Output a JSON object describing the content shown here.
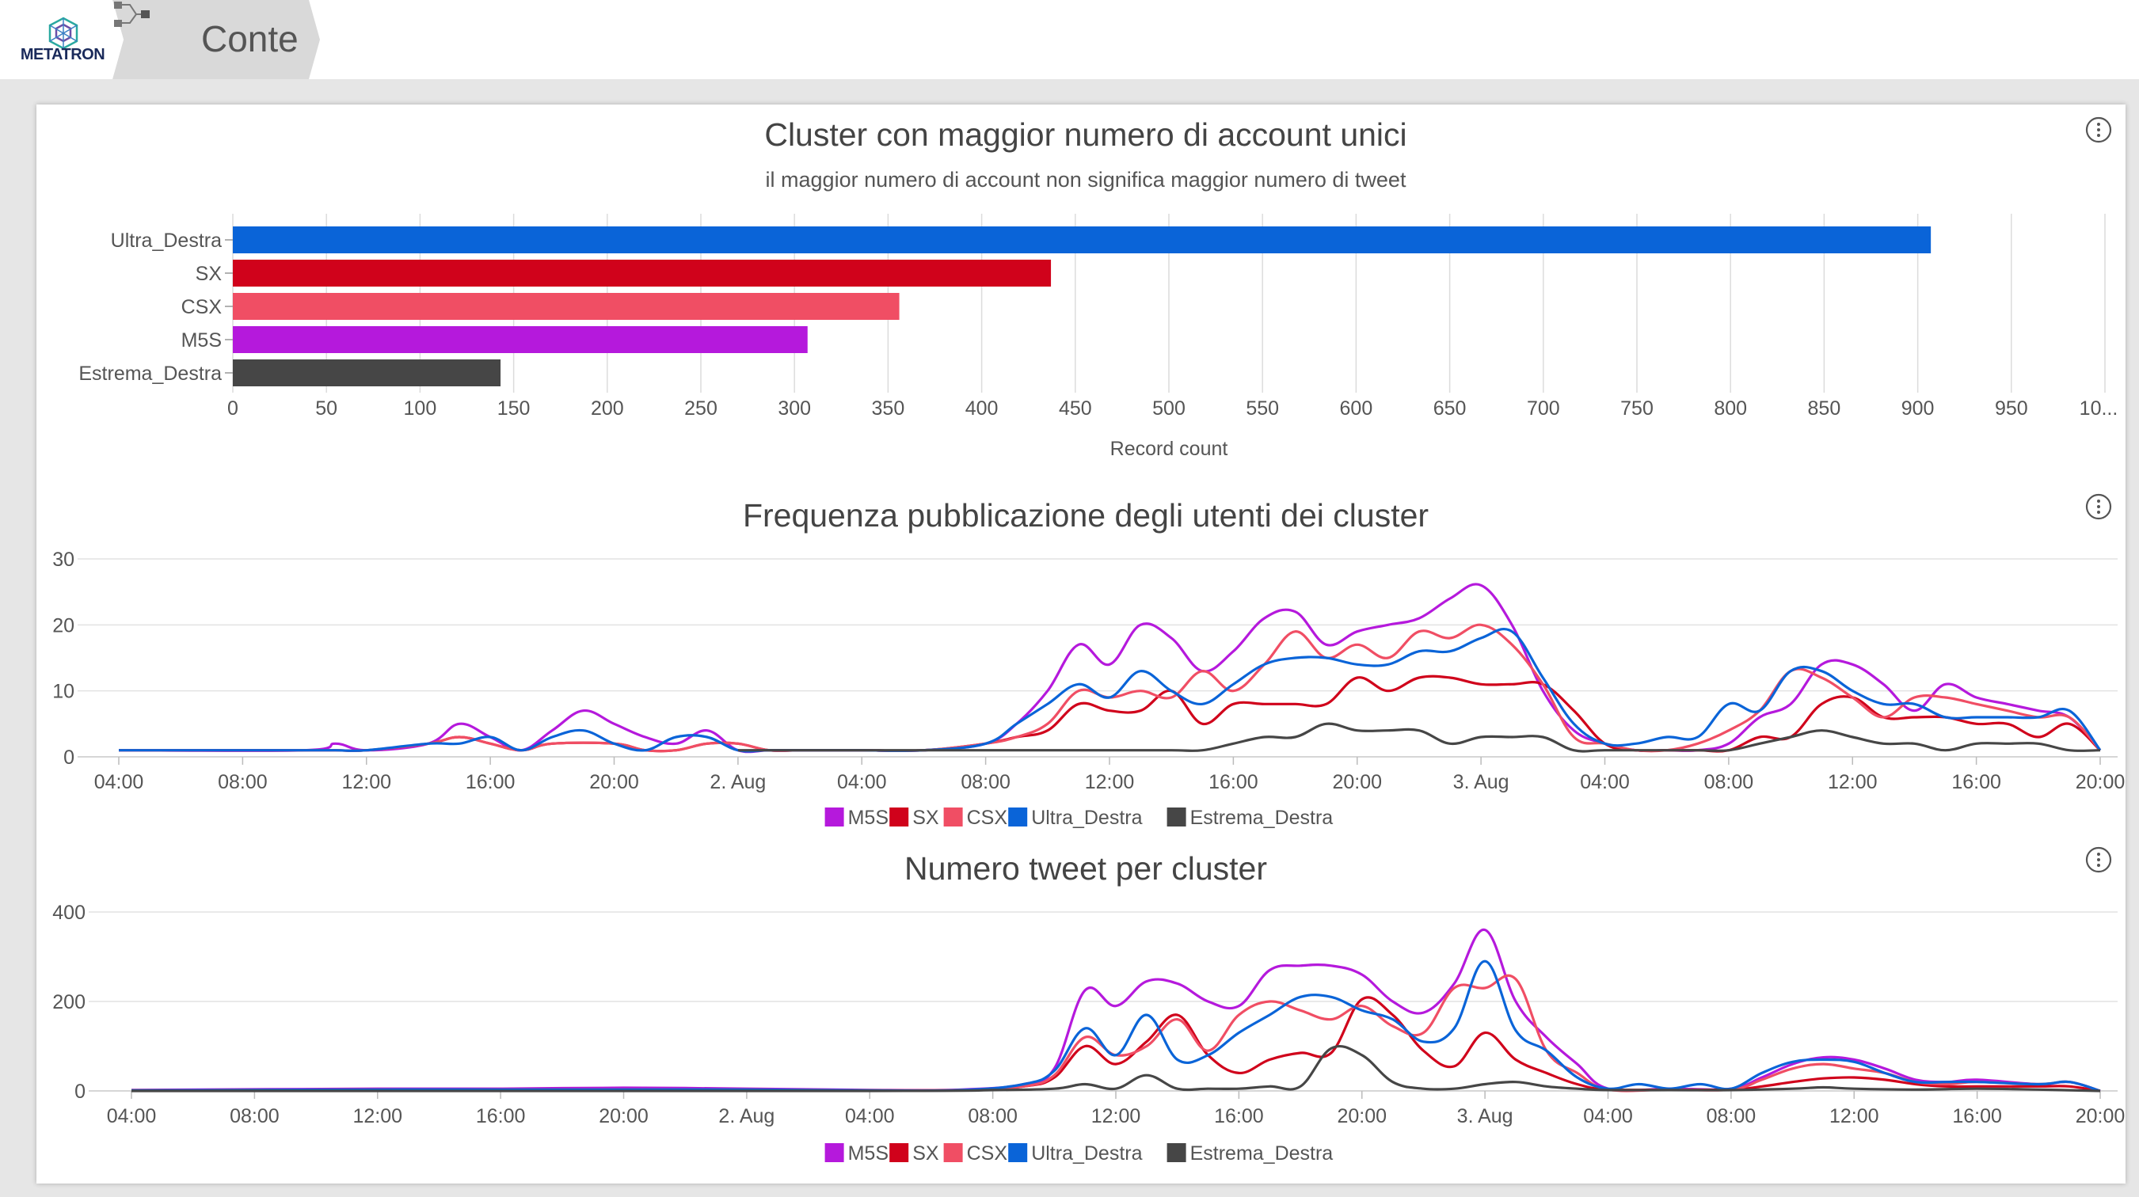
{
  "app": {
    "logo_text": "METATRON",
    "breadcrumb": "Conte"
  },
  "colors": {
    "M5S": "#b519dc",
    "SX": "#d0021b",
    "CSX": "#f04e64",
    "Ultra_Destra": "#0a64d8",
    "Estrema_Destra": "#464646"
  },
  "chart_data": [
    {
      "type": "bar",
      "title": "Cluster con maggior numero di account unici",
      "subtitle": "il maggior numero di account non significa maggior numero di tweet",
      "categories": [
        "Ultra_Destra",
        "SX",
        "CSX",
        "M5S",
        "Estrema_Destra"
      ],
      "values": [
        907,
        437,
        356,
        307,
        143
      ],
      "xlabel": "Record count",
      "ylabel": "",
      "xlim": [
        0,
        1000
      ],
      "ticks": [
        0,
        50,
        100,
        150,
        200,
        250,
        300,
        350,
        400,
        450,
        500,
        550,
        600,
        650,
        700,
        750,
        800,
        850,
        900,
        950
      ],
      "last_tick_label": "10...",
      "grid": true
    },
    {
      "type": "line",
      "title": "Frequenza pubblicazione degli utenti dei cluster",
      "ylim": [
        0,
        30
      ],
      "yticks": [
        0,
        10,
        20,
        30
      ],
      "x_tick_labels": [
        "04:00",
        "08:00",
        "12:00",
        "16:00",
        "20:00",
        "2. Aug",
        "04:00",
        "08:00",
        "12:00",
        "16:00",
        "20:00",
        "3. Aug",
        "04:00",
        "08:00",
        "12:00",
        "16:00",
        "20:00"
      ],
      "x_hours": [
        0,
        4,
        8,
        12,
        16,
        20,
        24,
        28,
        32,
        36,
        40,
        44,
        48,
        52,
        56,
        60,
        64
      ],
      "legend": [
        "M5S",
        "SX",
        "CSX",
        "Ultra_Destra",
        "Estrema_Destra"
      ],
      "legend_position": "bottom-center",
      "grid": true,
      "series": [
        {
          "name": "M5S",
          "x": [
            0,
            6,
            7,
            8,
            10,
            11,
            12,
            13,
            14,
            15,
            16,
            17,
            18,
            19,
            20,
            21,
            22,
            23,
            24,
            26,
            28,
            29,
            30,
            31,
            32,
            33,
            34,
            35,
            36,
            37,
            38,
            39,
            40,
            41,
            42,
            43,
            44,
            45,
            46,
            47,
            48,
            49,
            50,
            51,
            52,
            53,
            54,
            55,
            56,
            57,
            58,
            59,
            60,
            61,
            62,
            63,
            64
          ],
          "y": [
            1,
            1,
            2,
            1,
            2,
            5,
            3,
            1,
            4,
            7,
            5,
            3,
            2,
            4,
            1,
            1,
            1,
            1,
            1,
            1,
            2,
            5,
            10,
            17,
            14,
            20,
            18,
            13,
            16,
            21,
            22,
            17,
            19,
            20,
            21,
            24,
            26,
            20,
            10,
            4,
            2,
            1,
            1,
            1,
            2,
            6,
            8,
            14,
            14,
            11,
            7,
            11,
            9,
            8,
            7,
            6,
            1
          ]
        },
        {
          "name": "SX",
          "x": [
            0,
            6,
            7,
            8,
            10,
            11,
            12,
            13,
            14,
            16,
            17,
            18,
            19,
            20,
            21,
            22,
            23,
            24,
            26,
            28,
            29,
            30,
            31,
            32,
            33,
            34,
            35,
            36,
            37,
            38,
            39,
            40,
            41,
            42,
            43,
            44,
            45,
            46,
            47,
            48,
            49,
            50,
            51,
            52,
            53,
            54,
            55,
            56,
            57,
            58,
            59,
            60,
            61,
            62,
            63,
            64
          ],
          "y": [
            1,
            1,
            1,
            1,
            2,
            3,
            2,
            1,
            2,
            2,
            1,
            1,
            2,
            2,
            1,
            1,
            1,
            1,
            1,
            2,
            3,
            4,
            8,
            7,
            7,
            10,
            5,
            8,
            8,
            8,
            8,
            12,
            10,
            12,
            12,
            11,
            11,
            11,
            7,
            2,
            1,
            1,
            1,
            1,
            3,
            3,
            8,
            9,
            6,
            6,
            6,
            5,
            5,
            3,
            5,
            1
          ]
        },
        {
          "name": "CSX",
          "x": [
            0,
            6,
            7,
            8,
            10,
            11,
            12,
            13,
            14,
            16,
            17,
            18,
            19,
            20,
            21,
            22,
            23,
            24,
            26,
            28,
            29,
            30,
            31,
            32,
            33,
            34,
            35,
            36,
            37,
            38,
            39,
            40,
            41,
            42,
            43,
            44,
            45,
            46,
            47,
            48,
            49,
            50,
            51,
            52,
            53,
            54,
            55,
            56,
            57,
            58,
            59,
            60,
            61,
            62,
            63,
            64
          ],
          "y": [
            1,
            1,
            1,
            1,
            2,
            3,
            2,
            1,
            2,
            2,
            1,
            1,
            2,
            2,
            1,
            1,
            1,
            1,
            1,
            2,
            3,
            5,
            10,
            9,
            10,
            9,
            13,
            10,
            14,
            19,
            15,
            17,
            15,
            19,
            18,
            20,
            17,
            11,
            3,
            2,
            1,
            1,
            2,
            4,
            7,
            13,
            12,
            9,
            6,
            9,
            9,
            8,
            7,
            6,
            6,
            1
          ]
        },
        {
          "name": "Ultra_Destra",
          "x": [
            0,
            6,
            7,
            8,
            10,
            11,
            12,
            13,
            14,
            15,
            16,
            17,
            18,
            19,
            20,
            21,
            22,
            23,
            24,
            26,
            28,
            29,
            30,
            31,
            32,
            33,
            34,
            35,
            36,
            37,
            38,
            39,
            40,
            41,
            42,
            43,
            44,
            45,
            46,
            47,
            48,
            49,
            50,
            51,
            52,
            53,
            54,
            55,
            56,
            57,
            58,
            59,
            60,
            61,
            62,
            63,
            64
          ],
          "y": [
            1,
            1,
            1,
            1,
            2,
            2,
            3,
            1,
            3,
            4,
            2,
            1,
            3,
            3,
            1,
            1,
            1,
            1,
            1,
            1,
            2,
            5,
            8,
            11,
            9,
            13,
            10,
            8,
            11,
            14,
            15,
            15,
            14,
            14,
            16,
            16,
            18,
            19,
            12,
            5,
            2,
            2,
            3,
            3,
            8,
            7,
            13,
            13,
            10,
            8,
            8,
            6,
            6,
            6,
            6,
            7,
            1
          ]
        },
        {
          "name": "Estrema_Destra",
          "x": [
            20,
            24,
            28,
            32,
            34,
            35,
            36,
            37,
            38,
            39,
            40,
            41,
            42,
            43,
            44,
            45,
            46,
            47,
            48,
            50,
            51,
            52,
            53,
            54,
            55,
            56,
            57,
            58,
            59,
            60,
            61,
            62,
            63,
            64
          ],
          "y": [
            1,
            1,
            1,
            1,
            1,
            1,
            2,
            3,
            3,
            5,
            4,
            4,
            4,
            2,
            3,
            3,
            3,
            1,
            1,
            1,
            1,
            1,
            2,
            3,
            4,
            3,
            2,
            2,
            1,
            2,
            2,
            2,
            1,
            1
          ]
        }
      ]
    },
    {
      "type": "line",
      "title": "Numero tweet per cluster",
      "ylim": [
        0,
        400
      ],
      "yticks": [
        0,
        200,
        400
      ],
      "x_tick_labels": [
        "04:00",
        "08:00",
        "12:00",
        "16:00",
        "20:00",
        "2. Aug",
        "04:00",
        "08:00",
        "12:00",
        "16:00",
        "20:00",
        "3. Aug",
        "04:00",
        "08:00",
        "12:00",
        "16:00",
        "20:00"
      ],
      "x_hours": [
        0,
        4,
        8,
        12,
        16,
        20,
        24,
        28,
        32,
        36,
        40,
        44,
        48,
        52,
        56,
        60,
        64
      ],
      "legend": [
        "M5S",
        "SX",
        "CSX",
        "Ultra_Destra",
        "Estrema_Destra"
      ],
      "legend_position": "bottom-center",
      "grid": true,
      "series": [
        {
          "name": "M5S",
          "x": [
            0,
            8,
            12,
            16,
            20,
            24,
            27,
            29,
            30,
            31,
            32,
            33,
            34,
            35,
            36,
            37,
            38,
            39,
            40,
            41,
            42,
            43,
            44,
            45,
            46,
            47,
            48,
            50,
            52,
            53,
            54,
            55,
            56,
            57,
            58,
            59,
            60,
            62,
            63,
            64
          ],
          "y": [
            2,
            5,
            5,
            7,
            5,
            2,
            3,
            15,
            50,
            225,
            190,
            245,
            240,
            200,
            190,
            270,
            280,
            280,
            260,
            200,
            175,
            240,
            360,
            200,
            120,
            60,
            5,
            5,
            5,
            30,
            60,
            75,
            70,
            50,
            25,
            20,
            25,
            15,
            20,
            0
          ]
        },
        {
          "name": "SX",
          "x": [
            0,
            8,
            12,
            16,
            20,
            24,
            27,
            29,
            30,
            31,
            32,
            33,
            34,
            35,
            36,
            37,
            38,
            39,
            40,
            41,
            42,
            43,
            44,
            45,
            46,
            47,
            48,
            50,
            52,
            53,
            54,
            55,
            56,
            57,
            58,
            59,
            60,
            62,
            63,
            64
          ],
          "y": [
            1,
            3,
            3,
            3,
            3,
            1,
            2,
            10,
            30,
            100,
            60,
            110,
            170,
            80,
            40,
            70,
            85,
            85,
            205,
            170,
            90,
            55,
            130,
            70,
            40,
            15,
            3,
            3,
            3,
            10,
            20,
            28,
            30,
            25,
            15,
            10,
            10,
            10,
            10,
            0
          ]
        },
        {
          "name": "CSX",
          "x": [
            0,
            8,
            12,
            16,
            20,
            24,
            27,
            29,
            30,
            31,
            32,
            33,
            34,
            35,
            36,
            37,
            38,
            39,
            40,
            41,
            42,
            43,
            44,
            45,
            46,
            47,
            48,
            50,
            52,
            53,
            54,
            55,
            56,
            57,
            58,
            59,
            60,
            62,
            63,
            64
          ],
          "y": [
            1,
            3,
            3,
            3,
            3,
            1,
            2,
            10,
            35,
            120,
            80,
            100,
            160,
            90,
            170,
            200,
            180,
            160,
            190,
            145,
            130,
            230,
            230,
            250,
            90,
            40,
            3,
            3,
            3,
            25,
            50,
            60,
            50,
            40,
            20,
            15,
            20,
            15,
            20,
            0
          ]
        },
        {
          "name": "Ultra_Destra",
          "x": [
            0,
            8,
            12,
            16,
            20,
            24,
            27,
            29,
            30,
            31,
            32,
            33,
            34,
            35,
            36,
            37,
            38,
            39,
            40,
            41,
            42,
            43,
            44,
            45,
            46,
            47,
            48,
            49,
            50,
            51,
            52,
            53,
            54,
            55,
            56,
            57,
            58,
            59,
            60,
            62,
            63,
            64
          ],
          "y": [
            1,
            3,
            3,
            3,
            3,
            1,
            2,
            15,
            45,
            140,
            80,
            170,
            70,
            80,
            130,
            170,
            210,
            210,
            180,
            160,
            110,
            140,
            290,
            135,
            90,
            30,
            5,
            15,
            5,
            15,
            5,
            40,
            65,
            70,
            65,
            40,
            20,
            20,
            20,
            15,
            20,
            0
          ]
        },
        {
          "name": "Estrema_Destra",
          "x": [
            0,
            24,
            28,
            30,
            31,
            32,
            33,
            34,
            35,
            36,
            37,
            38,
            39,
            40,
            41,
            42,
            43,
            44,
            45,
            46,
            47,
            48,
            50,
            52,
            54,
            55,
            56,
            58,
            60,
            62,
            64
          ],
          "y": [
            0,
            0,
            2,
            5,
            15,
            5,
            35,
            5,
            5,
            5,
            10,
            10,
            95,
            80,
            20,
            5,
            5,
            15,
            20,
            10,
            5,
            2,
            2,
            2,
            5,
            8,
            5,
            3,
            5,
            3,
            0
          ]
        }
      ]
    }
  ]
}
